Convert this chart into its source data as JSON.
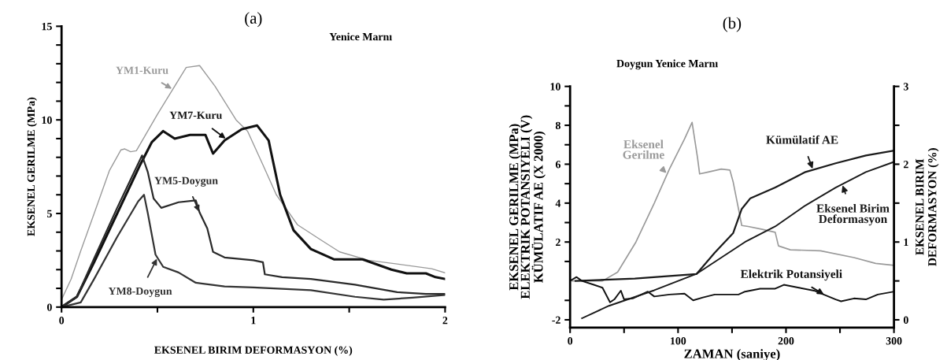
{
  "chart_data": [
    {
      "type": "line",
      "title": "(a)",
      "subtitle": "Yenice Marnı",
      "xlabel": "EKSENEL BIRIM DEFORMASYON (%)",
      "ylabel": "EKSENEL GERILME (MPa)",
      "xlim": [
        0,
        2
      ],
      "xticks": [
        0,
        {
          "value": 0.5,
          "label": null
        },
        1,
        {
          "value": 1.5,
          "label": null
        },
        2
      ],
      "ylim": [
        0,
        15
      ],
      "yticks": [
        0,
        {
          "value": 1,
          "label": null
        },
        {
          "value": 2,
          "label": null
        },
        {
          "value": 3,
          "label": null
        },
        {
          "value": 4,
          "label": null
        },
        5,
        {
          "value": 6,
          "label": null
        },
        {
          "value": 7,
          "label": null
        },
        {
          "value": 8,
          "label": null
        },
        {
          "value": 9,
          "label": null
        },
        10,
        {
          "value": 11,
          "label": null
        },
        {
          "value": 12,
          "label": null
        },
        {
          "value": 13,
          "label": null
        },
        {
          "value": 14,
          "label": null
        },
        15
      ],
      "grid": false,
      "marker": "none",
      "line_style": "solid",
      "series": [
        {
          "name": "YM1-Kuru",
          "color": "#9a9a9a",
          "x": [
            0,
            0.05,
            0.1,
            0.17,
            0.25,
            0.31,
            0.33,
            0.36,
            0.39,
            0.5,
            0.65,
            0.72,
            0.8,
            0.91,
            0.97,
            1.05,
            1.12,
            1.23,
            1.35,
            1.45,
            1.6,
            1.75,
            1.93,
            2.0
          ],
          "values": [
            0.4,
            1.5,
            3.0,
            5.0,
            7.3,
            8.4,
            8.45,
            8.3,
            8.35,
            10.3,
            12.8,
            12.9,
            11.8,
            10.0,
            9.4,
            7.6,
            6.0,
            4.4,
            3.6,
            2.95,
            2.5,
            2.3,
            2.05,
            1.83
          ]
        },
        {
          "name": "YM7-Kuru",
          "color": "#111111",
          "x": [
            0,
            0.08,
            0.17,
            0.29,
            0.41,
            0.47,
            0.53,
            0.59,
            0.67,
            0.75,
            0.79,
            0.85,
            0.94,
            1.02,
            1.08,
            1.09,
            1.14,
            1.21,
            1.3,
            1.42,
            1.57,
            1.72,
            1.8,
            1.9,
            1.95,
            2.0
          ],
          "values": [
            0,
            0.55,
            2.4,
            5.0,
            7.6,
            8.8,
            9.4,
            9.0,
            9.2,
            9.2,
            8.2,
            8.9,
            9.5,
            9.7,
            8.9,
            8.4,
            6.0,
            4.1,
            3.1,
            2.55,
            2.55,
            2.0,
            1.8,
            1.8,
            1.6,
            1.5
          ]
        },
        {
          "name": "YM5-Doygun",
          "color": "#2a2a2a",
          "x": [
            0,
            0.08,
            0.17,
            0.29,
            0.42,
            0.45,
            0.48,
            0.52,
            0.61,
            0.7,
            0.72,
            0.76,
            0.79,
            0.85,
            1.0,
            1.05,
            1.06,
            1.15,
            1.3,
            1.53,
            1.75,
            1.9,
            2.0
          ],
          "values": [
            0,
            0.55,
            2.6,
            5.3,
            8.1,
            7.2,
            5.8,
            5.3,
            5.6,
            5.7,
            5.05,
            4.2,
            2.95,
            2.65,
            2.5,
            2.4,
            1.75,
            1.6,
            1.5,
            1.2,
            0.8,
            0.7,
            0.7
          ]
        },
        {
          "name": "YM8-Doygun",
          "color": "#333333",
          "x": [
            0,
            0.1,
            0.17,
            0.29,
            0.4,
            0.43,
            0.45,
            0.49,
            0.53,
            0.61,
            0.7,
            0.85,
            1.0,
            1.3,
            1.53,
            1.68,
            1.83,
            2.0
          ],
          "values": [
            0,
            0.25,
            1.5,
            3.75,
            5.65,
            6.0,
            5.0,
            2.8,
            2.15,
            1.85,
            1.3,
            1.1,
            1.05,
            0.9,
            0.55,
            0.4,
            0.5,
            0.65
          ]
        }
      ]
    },
    {
      "type": "line",
      "title": "(b)",
      "subtitle": "Doygun Yenice Marnı",
      "xlabel": "ZAMAN (saniye)",
      "ylabel": "EKSENEL GERILME (MPa)\nELEKTRIK POTANSIYELI (V)\nKÜMÜLATIF AE (X 2000)",
      "y2label": "EKSENEL BIRIM\nDEFORMASYON (%)",
      "xlim": [
        0,
        300
      ],
      "xticks": [
        0,
        {
          "value": 50,
          "label": null
        },
        100,
        {
          "value": 150,
          "label": null
        },
        200,
        {
          "value": 250,
          "label": null
        },
        300
      ],
      "ylim": [
        -2.4,
        10
      ],
      "yticks": [
        -2,
        {
          "value": -1,
          "label": null
        },
        {
          "value": 1,
          "label": null
        },
        2,
        {
          "value": 3,
          "label": null
        },
        4,
        {
          "value": 5,
          "label": null
        },
        6,
        {
          "value": 7,
          "label": null
        },
        8,
        {
          "value": 9,
          "label": null
        },
        10
      ],
      "y2lim": [
        -0.1,
        3
      ],
      "y2ticks": [
        0,
        {
          "value": 0.5,
          "label": null
        },
        1,
        {
          "value": 1.5,
          "label": null
        },
        2,
        {
          "value": 2.5,
          "label": null
        },
        3
      ],
      "grid": false,
      "marker": "none",
      "line_style": "solid",
      "series": [
        {
          "name": "Eksenel\nGerilme",
          "color": "#9a9a9a",
          "x": [
            2,
            30,
            44,
            61,
            78,
            92,
            106,
            113,
            118,
            120,
            128,
            140,
            148,
            151,
            156,
            159,
            165,
            178,
            190,
            193,
            204,
            232,
            263,
            283,
            300
          ],
          "values": [
            0,
            0,
            0.45,
            2.0,
            4.0,
            5.75,
            7.3,
            8.15,
            6.35,
            5.5,
            5.6,
            5.75,
            5.7,
            5.1,
            3.7,
            2.85,
            2.8,
            2.65,
            2.5,
            1.8,
            1.6,
            1.55,
            1.2,
            0.9,
            0.8
          ]
        },
        {
          "name": "Kümülatif AE",
          "color": "#1a1a1a",
          "x": [
            5,
            60,
            117,
            134,
            151,
            159,
            167,
            190,
            218,
            246,
            274,
            300
          ],
          "values": [
            0,
            0.12,
            0.35,
            1.45,
            2.45,
            3.7,
            4.25,
            4.8,
            5.6,
            6.05,
            6.45,
            6.7
          ]
        },
        {
          "name": "Eksenel Birim\nDeformasyon",
          "color": "#1a1a1a",
          "axis": "y2",
          "x": [
            11,
            36,
            78,
            117,
            162,
            190,
            218,
            246,
            274,
            300
          ],
          "values": [
            0.02,
            0.18,
            0.38,
            0.59,
            1.0,
            1.2,
            1.47,
            1.7,
            1.9,
            2.03
          ]
        },
        {
          "name": "Elektrik Potansiyeli",
          "color": "#111111",
          "x": [
            0,
            6,
            11,
            22,
            30,
            37,
            41,
            47,
            50,
            58,
            72,
            78,
            92,
            106,
            114,
            123,
            134,
            156,
            162,
            176,
            190,
            198,
            212,
            226,
            246,
            251,
            263,
            274,
            285,
            300
          ],
          "values": [
            0,
            0.2,
            0,
            -0.2,
            -0.35,
            -1.1,
            -0.95,
            -0.5,
            -0.95,
            -0.9,
            -0.55,
            -0.8,
            -0.7,
            -0.65,
            -1.0,
            -0.85,
            -0.7,
            -0.7,
            -0.55,
            -0.4,
            -0.4,
            -0.2,
            -0.35,
            -0.5,
            -0.95,
            -1.05,
            -0.9,
            -0.95,
            -0.7,
            -0.55
          ]
        }
      ]
    }
  ]
}
